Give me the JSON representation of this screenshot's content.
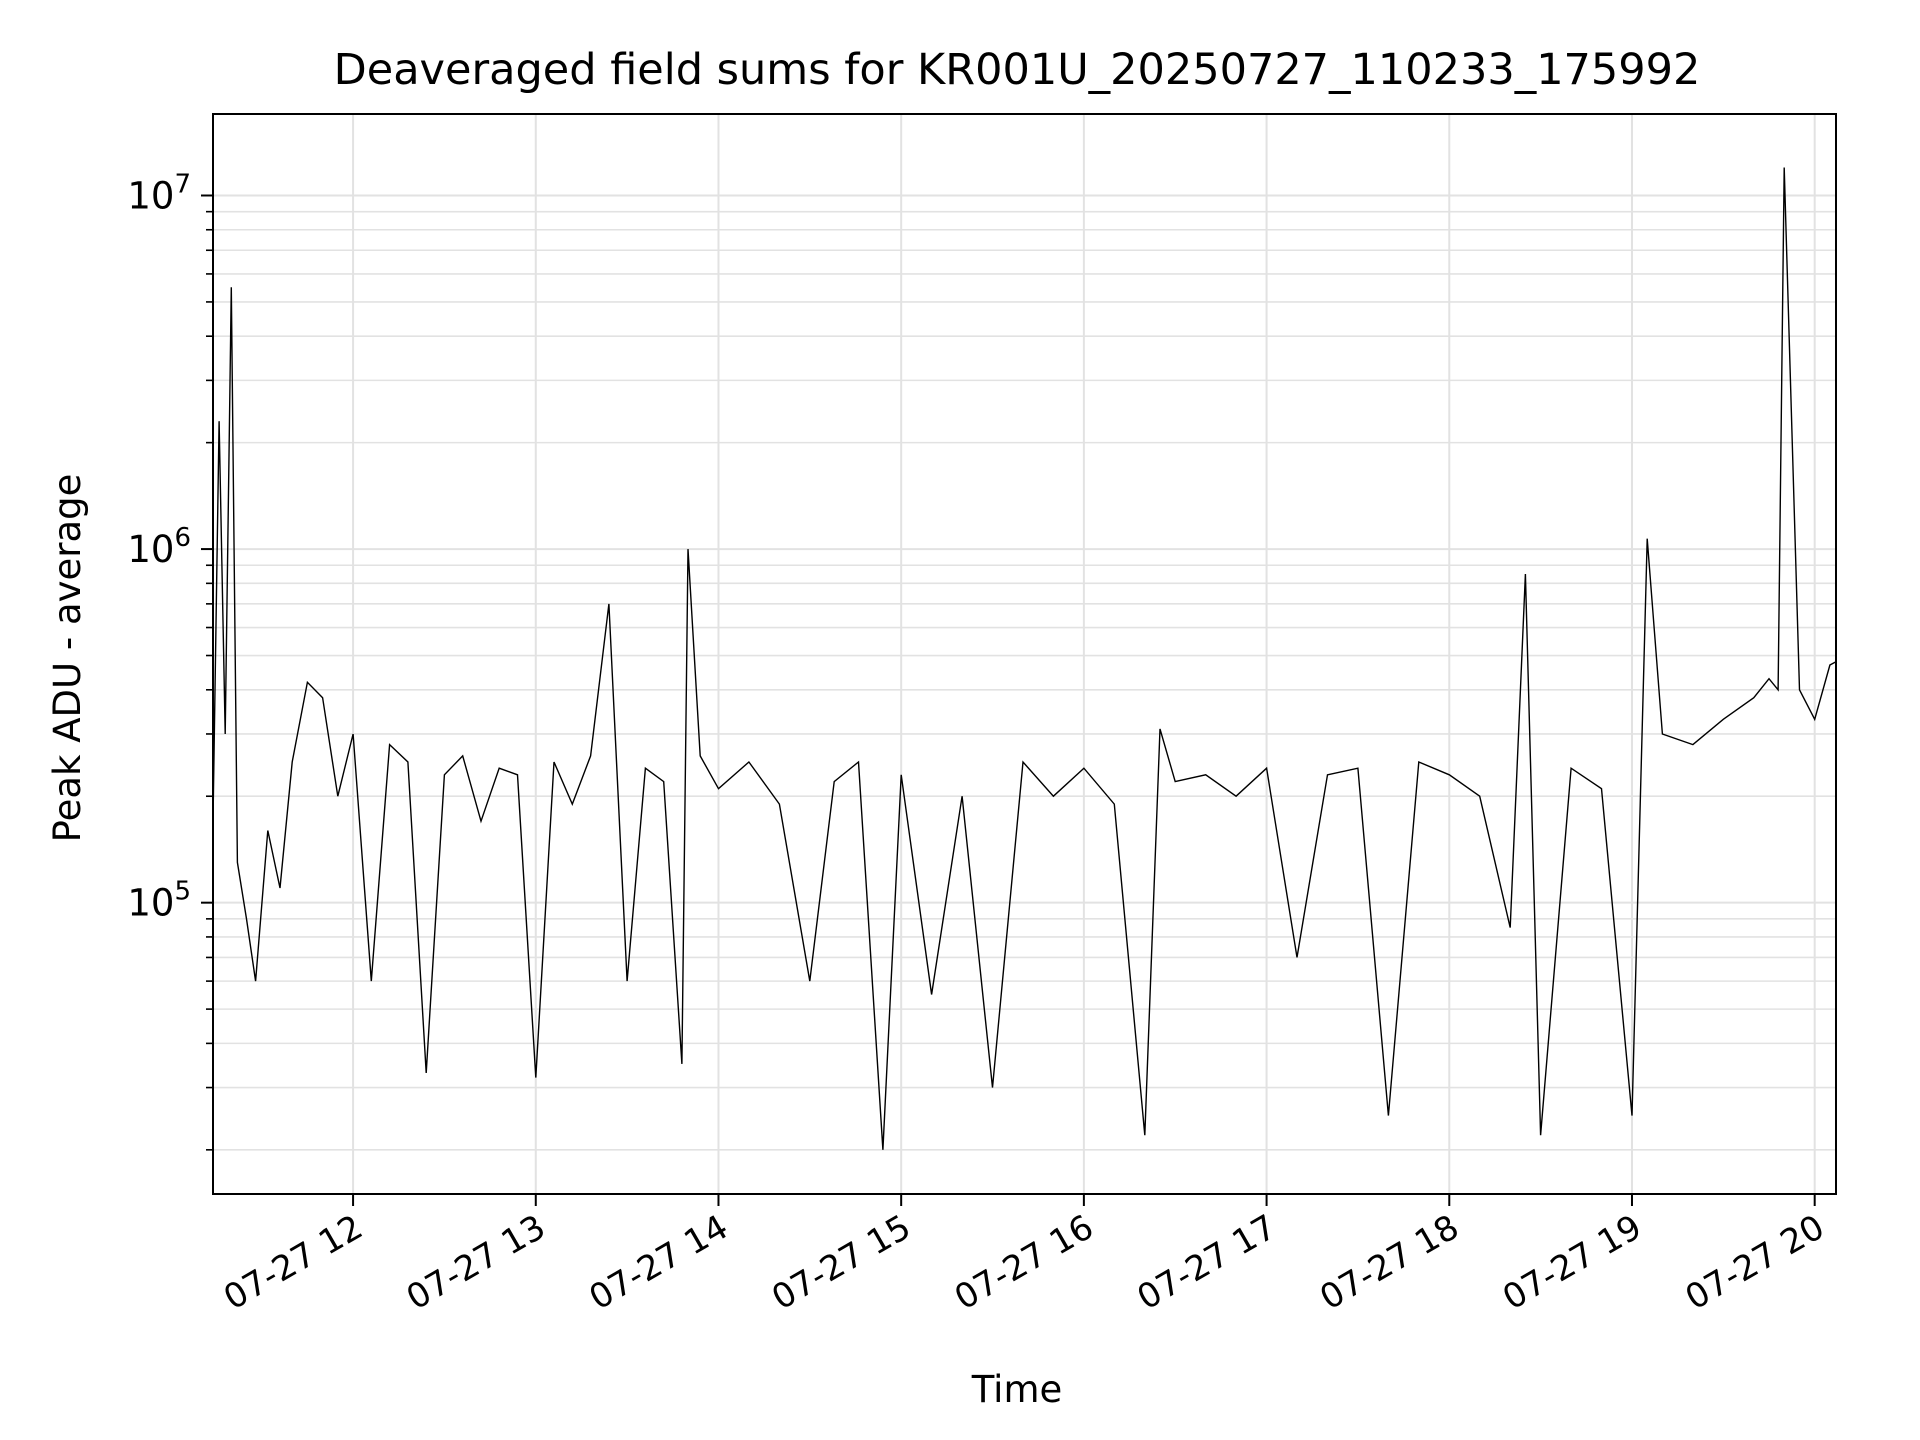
{
  "chart_data": {
    "type": "line",
    "title": "Deaveraged field sums for KR001U_20250727_110233_175992",
    "xlabel": "Time",
    "ylabel": "Peak ADU - average",
    "yscale": "log",
    "xlim": [
      "2025-07-27 11:14",
      "2025-07-27 20:07"
    ],
    "ylim": [
      15000,
      17000000
    ],
    "grid": true,
    "legend": "none",
    "line_color": "#000000",
    "x_ticks": [
      {
        "value": "2025-07-27 12:00",
        "label": "07-27 12"
      },
      {
        "value": "2025-07-27 13:00",
        "label": "07-27 13"
      },
      {
        "value": "2025-07-27 14:00",
        "label": "07-27 14"
      },
      {
        "value": "2025-07-27 15:00",
        "label": "07-27 15"
      },
      {
        "value": "2025-07-27 16:00",
        "label": "07-27 16"
      },
      {
        "value": "2025-07-27 17:00",
        "label": "07-27 17"
      },
      {
        "value": "2025-07-27 18:00",
        "label": "07-27 18"
      },
      {
        "value": "2025-07-27 19:00",
        "label": "07-27 19"
      },
      {
        "value": "2025-07-27 20:00",
        "label": "07-27 20"
      }
    ],
    "y_ticks": [
      {
        "value": 100000,
        "base": "10",
        "exp": "5"
      },
      {
        "value": 1000000,
        "base": "10",
        "exp": "6"
      },
      {
        "value": 10000000,
        "base": "10",
        "exp": "7"
      }
    ],
    "series": [
      {
        "x": [
          "2025-07-27 11:14",
          "2025-07-27 11:16",
          "2025-07-27 11:18",
          "2025-07-27 11:20",
          "2025-07-27 11:22",
          "2025-07-27 11:25",
          "2025-07-27 11:28",
          "2025-07-27 11:32",
          "2025-07-27 11:36",
          "2025-07-27 11:40",
          "2025-07-27 11:45",
          "2025-07-27 11:50",
          "2025-07-27 11:55",
          "2025-07-27 12:00",
          "2025-07-27 12:06",
          "2025-07-27 12:12",
          "2025-07-27 12:18",
          "2025-07-27 12:24",
          "2025-07-27 12:30",
          "2025-07-27 12:36",
          "2025-07-27 12:42",
          "2025-07-27 12:48",
          "2025-07-27 12:54",
          "2025-07-27 13:00",
          "2025-07-27 13:06",
          "2025-07-27 13:12",
          "2025-07-27 13:18",
          "2025-07-27 13:24",
          "2025-07-27 13:30",
          "2025-07-27 13:36",
          "2025-07-27 13:42",
          "2025-07-27 13:48",
          "2025-07-27 13:50",
          "2025-07-27 13:54",
          "2025-07-27 14:00",
          "2025-07-27 14:10",
          "2025-07-27 14:20",
          "2025-07-27 14:30",
          "2025-07-27 14:38",
          "2025-07-27 14:46",
          "2025-07-27 14:54",
          "2025-07-27 15:00",
          "2025-07-27 15:10",
          "2025-07-27 15:20",
          "2025-07-27 15:30",
          "2025-07-27 15:40",
          "2025-07-27 15:50",
          "2025-07-27 16:00",
          "2025-07-27 16:10",
          "2025-07-27 16:20",
          "2025-07-27 16:25",
          "2025-07-27 16:30",
          "2025-07-27 16:40",
          "2025-07-27 16:50",
          "2025-07-27 17:00",
          "2025-07-27 17:10",
          "2025-07-27 17:20",
          "2025-07-27 17:30",
          "2025-07-27 17:40",
          "2025-07-27 17:50",
          "2025-07-27 18:00",
          "2025-07-27 18:10",
          "2025-07-27 18:20",
          "2025-07-27 18:25",
          "2025-07-27 18:30",
          "2025-07-27 18:40",
          "2025-07-27 18:50",
          "2025-07-27 19:00",
          "2025-07-27 19:05",
          "2025-07-27 19:10",
          "2025-07-27 19:20",
          "2025-07-27 19:30",
          "2025-07-27 19:40",
          "2025-07-27 19:45",
          "2025-07-27 19:48",
          "2025-07-27 19:50",
          "2025-07-27 19:55",
          "2025-07-27 20:00",
          "2025-07-27 20:05",
          "2025-07-27 20:07"
        ],
        "y": [
          170000,
          2300000,
          300000,
          5500000,
          130000,
          90000,
          60000,
          160000,
          110000,
          250000,
          420000,
          380000,
          200000,
          300000,
          60000,
          280000,
          250000,
          33000,
          230000,
          260000,
          170000,
          240000,
          230000,
          32000,
          250000,
          190000,
          260000,
          700000,
          60000,
          240000,
          220000,
          35000,
          1000000,
          260000,
          210000,
          250000,
          190000,
          60000,
          220000,
          250000,
          20000,
          230000,
          55000,
          200000,
          30000,
          250000,
          200000,
          240000,
          190000,
          22000,
          310000,
          220000,
          230000,
          200000,
          240000,
          70000,
          230000,
          240000,
          25000,
          250000,
          230000,
          200000,
          85000,
          850000,
          22000,
          240000,
          210000,
          25000,
          1070000,
          300000,
          280000,
          330000,
          380000,
          430000,
          400000,
          12000000,
          400000,
          330000,
          470000,
          480000
        ]
      }
    ]
  }
}
